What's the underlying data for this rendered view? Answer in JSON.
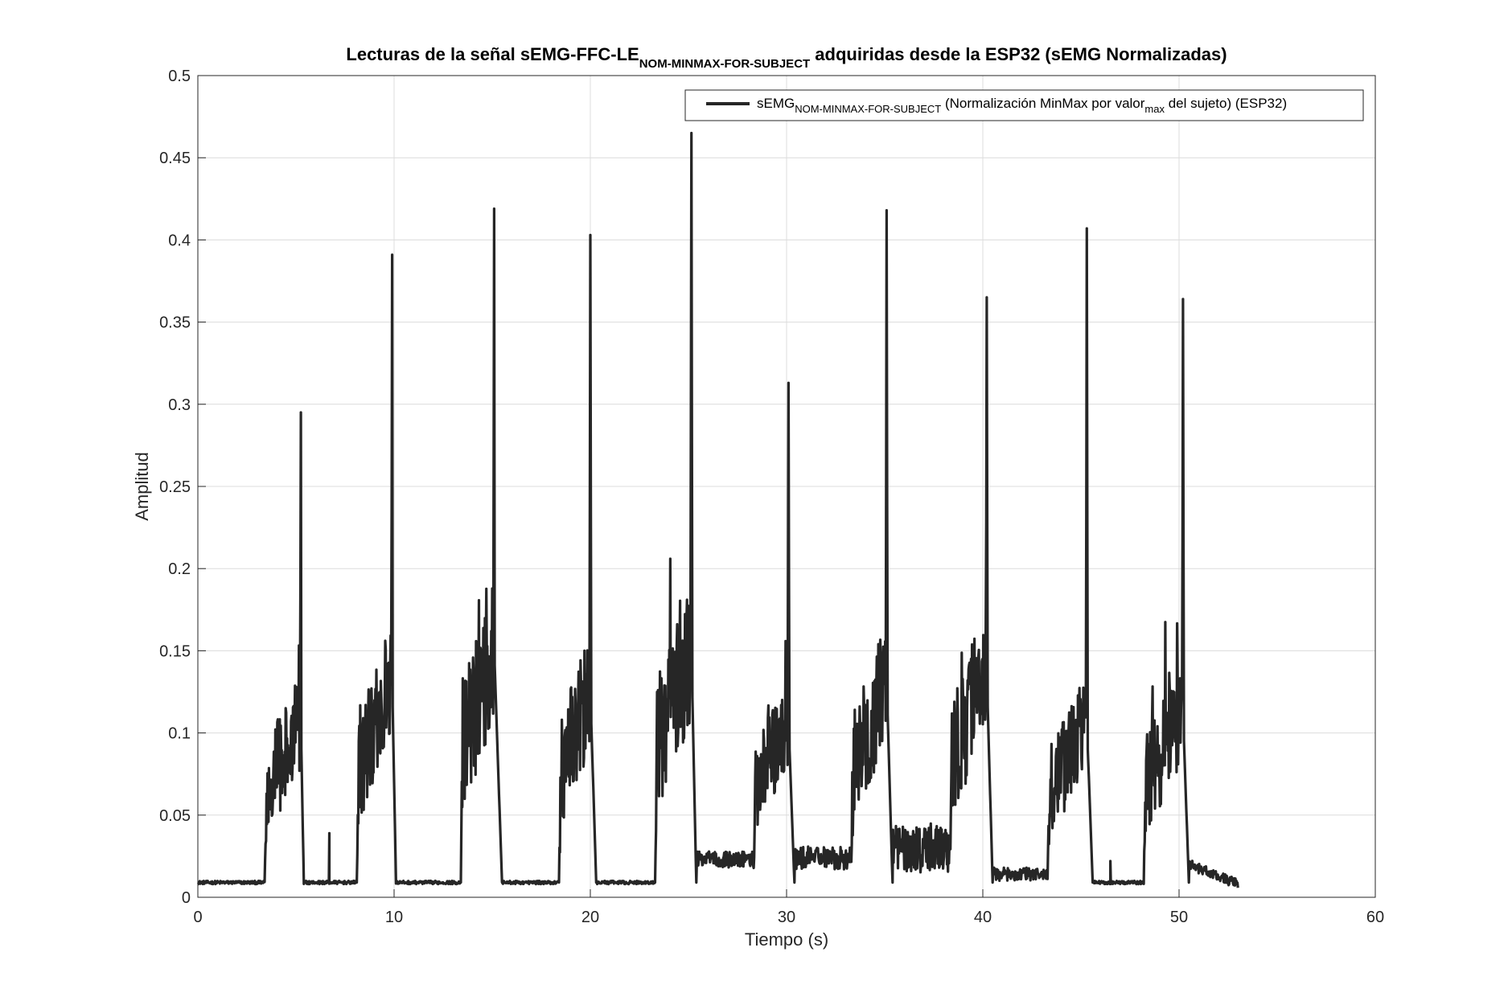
{
  "chart_data": {
    "type": "line",
    "title": {
      "prefix": "Lecturas de la señal sEMG-FFC-LE",
      "subscript": "NOM-MINMAX-FOR-SUBJECT",
      "suffix": " adquiridas desde la ESP32 (sEMG Normalizadas)"
    },
    "xlabel": "Tiempo (s)",
    "ylabel": "Amplitud",
    "xlim": [
      0,
      60
    ],
    "ylim": [
      0,
      0.5
    ],
    "xticks": [
      0,
      10,
      20,
      30,
      40,
      50,
      60
    ],
    "yticks": [
      0,
      0.05,
      0.1,
      0.15,
      0.2,
      0.25,
      0.3,
      0.35,
      0.4,
      0.45,
      0.5
    ],
    "ytick_labels": [
      "0",
      "0.05",
      "0.1",
      "0.15",
      "0.2",
      "0.25",
      "0.3",
      "0.35",
      "0.4",
      "0.45",
      "0.5"
    ],
    "grid": true,
    "legend_position": "top-right",
    "series": [
      {
        "legend": {
          "part1": "sEMG",
          "sub1": "NOM-MINMAX-FOR-SUBJECT",
          "part2": " (Normalización MinMax por valor",
          "sub2": "max",
          "part3": " del sujeto) (ESP32)"
        },
        "color": "#262626",
        "x_end": 53,
        "baseline": 0.009,
        "bursts": [
          {
            "start": 3.4,
            "peak_t": 5.25,
            "end": 5.4,
            "plateau": 0.085,
            "peak": 0.295
          },
          {
            "start": 8.1,
            "peak_t": 9.9,
            "end": 10.1,
            "plateau": 0.105,
            "peak": 0.391
          },
          {
            "start": 13.4,
            "peak_t": 15.1,
            "end": 15.5,
            "plateau": 0.12,
            "peak": 0.419
          },
          {
            "start": 18.4,
            "peak_t": 20.0,
            "end": 20.3,
            "plateau": 0.1,
            "peak": 0.403
          },
          {
            "start": 23.3,
            "peak_t": 25.15,
            "end": 25.4,
            "plateau": 0.12,
            "peak": 0.465
          },
          {
            "start": 28.3,
            "peak_t": 30.1,
            "end": 30.4,
            "plateau": 0.085,
            "peak": 0.313
          },
          {
            "start": 33.3,
            "peak_t": 35.1,
            "end": 35.4,
            "plateau": 0.105,
            "peak": 0.418
          },
          {
            "start": 38.3,
            "peak_t": 40.2,
            "end": 40.5,
            "plateau": 0.11,
            "peak": 0.365
          },
          {
            "start": 43.3,
            "peak_t": 45.3,
            "end": 45.6,
            "plateau": 0.085,
            "peak": 0.407
          },
          {
            "start": 48.2,
            "peak_t": 50.2,
            "end": 50.5,
            "plateau": 0.09,
            "peak": 0.364
          }
        ],
        "extra_points": [
          {
            "x": 6.6,
            "y": 0.009
          },
          {
            "x": 6.7,
            "y": 0.039
          },
          {
            "x": 6.9,
            "y": 0.009
          },
          {
            "x": 46.45,
            "y": 0.009
          },
          {
            "x": 46.5,
            "y": 0.022
          },
          {
            "x": 46.6,
            "y": 0.009
          }
        ]
      }
    ]
  }
}
